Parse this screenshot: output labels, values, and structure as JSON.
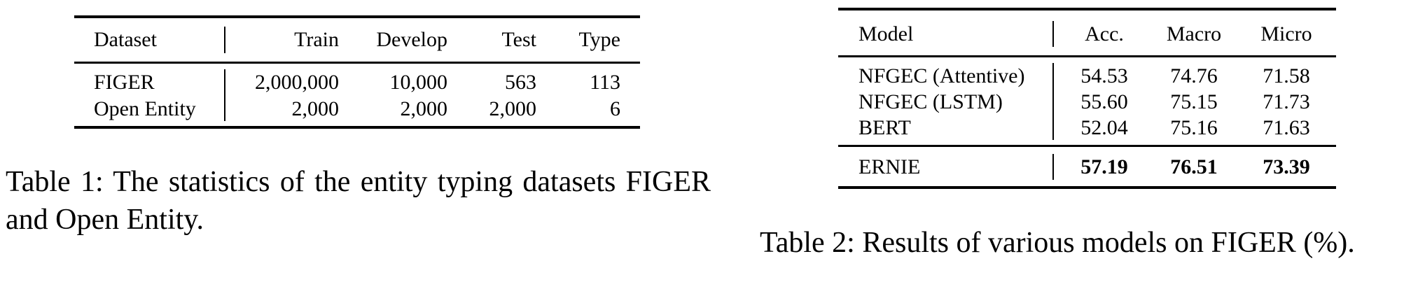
{
  "table1": {
    "columns": [
      "Dataset",
      "Train",
      "Develop",
      "Test",
      "Type"
    ],
    "rows": [
      [
        "FIGER",
        "2,000,000",
        "10,000",
        "563",
        "113"
      ],
      [
        "Open Entity",
        "2,000",
        "2,000",
        "2,000",
        "6"
      ]
    ],
    "caption": "Table 1: The statistics of the entity typing datasets FIGER and Open Entity."
  },
  "table2": {
    "columns": [
      "Model",
      "Acc.",
      "Macro",
      "Micro"
    ],
    "rows": [
      [
        "NFGEC (Attentive)",
        "54.53",
        "74.76",
        "71.58"
      ],
      [
        "NFGEC (LSTM)",
        "55.60",
        "75.15",
        "71.73"
      ],
      [
        "BERT",
        "52.04",
        "75.16",
        "71.63"
      ]
    ],
    "highlight_row": [
      "ERNIE",
      "57.19",
      "76.51",
      "73.39"
    ],
    "caption": "Table 2: Results of various models on FIGER (%)."
  }
}
